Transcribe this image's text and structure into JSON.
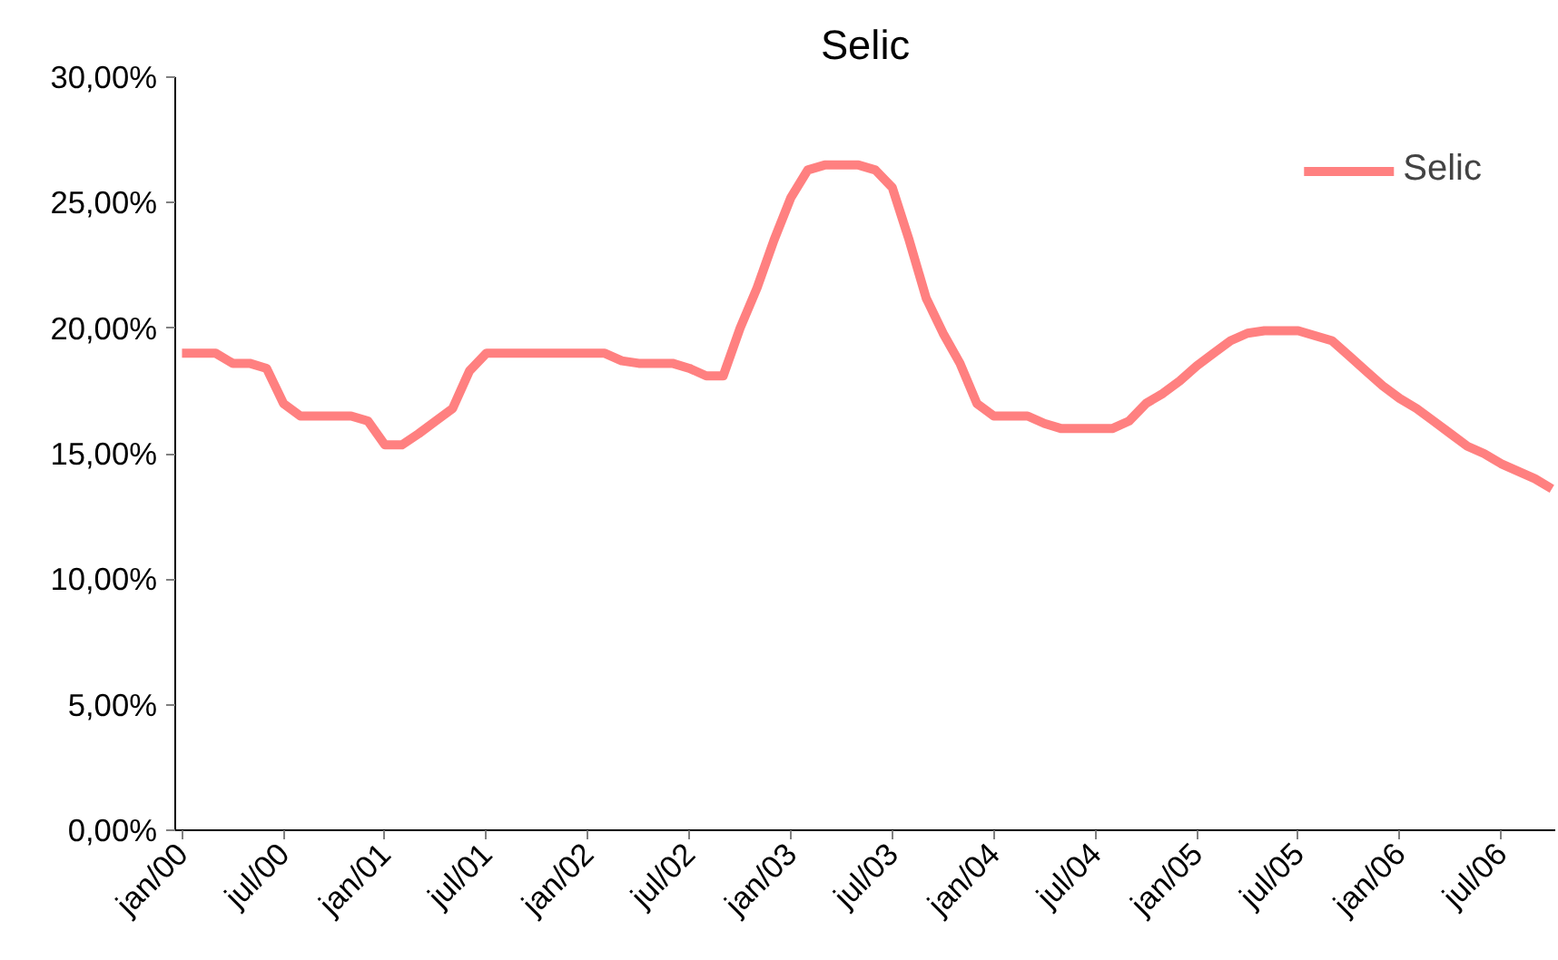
{
  "chart_data": {
    "type": "line",
    "title": "Selic",
    "categories": [
      "jan/00",
      null,
      null,
      null,
      null,
      null,
      "jul/00",
      null,
      null,
      null,
      null,
      null,
      "jan/01",
      null,
      null,
      null,
      null,
      null,
      "jul/01",
      null,
      null,
      null,
      null,
      null,
      "jan/02",
      null,
      null,
      null,
      null,
      null,
      "jul/02",
      null,
      null,
      null,
      null,
      null,
      "jan/03",
      null,
      null,
      null,
      null,
      null,
      "jul/03",
      null,
      null,
      null,
      null,
      null,
      "jan/04",
      null,
      null,
      null,
      null,
      null,
      "jul/04",
      null,
      null,
      null,
      null,
      null,
      "jan/05",
      null,
      null,
      null,
      null,
      null,
      "jul/05",
      null,
      null,
      null,
      null,
      null,
      "jan/06",
      null,
      null,
      null,
      null,
      null,
      "jul/06",
      null,
      null,
      null
    ],
    "series": [
      {
        "name": "Selic",
        "color": "#ff8080",
        "values": [
          19.0,
          19.0,
          19.0,
          18.6,
          18.6,
          18.4,
          17.0,
          16.5,
          16.5,
          16.5,
          16.5,
          16.3,
          15.35,
          15.35,
          15.8,
          16.3,
          16.8,
          18.3,
          19.0,
          19.0,
          19.0,
          19.0,
          19.0,
          19.0,
          19.0,
          19.0,
          18.7,
          18.6,
          18.6,
          18.6,
          18.4,
          18.1,
          18.1,
          20.0,
          21.6,
          23.5,
          25.2,
          26.3,
          26.5,
          26.5,
          26.5,
          26.3,
          25.6,
          23.5,
          21.2,
          19.8,
          18.6,
          17.0,
          16.5,
          16.5,
          16.5,
          16.2,
          16.0,
          16.0,
          16.0,
          16.0,
          16.3,
          17.0,
          17.4,
          17.9,
          18.5,
          19.0,
          19.5,
          19.8,
          19.9,
          19.9,
          19.9,
          19.7,
          19.5,
          18.9,
          18.3,
          17.7,
          17.2,
          16.8,
          16.3,
          15.8,
          15.3,
          15.0,
          14.6,
          14.3,
          14.0,
          13.6
        ]
      }
    ],
    "ylim": [
      0,
      30
    ],
    "yticks": [
      {
        "value": 0,
        "label": "0,00%"
      },
      {
        "value": 5,
        "label": "5,00%"
      },
      {
        "value": 10,
        "label": "10,00%"
      },
      {
        "value": 15,
        "label": "15,00%"
      },
      {
        "value": 20,
        "label": "20,00%"
      },
      {
        "value": 25,
        "label": "25,00%"
      },
      {
        "value": 30,
        "label": "30,00%"
      }
    ],
    "legend": "top right",
    "marker": "none",
    "line_style": "solid"
  }
}
